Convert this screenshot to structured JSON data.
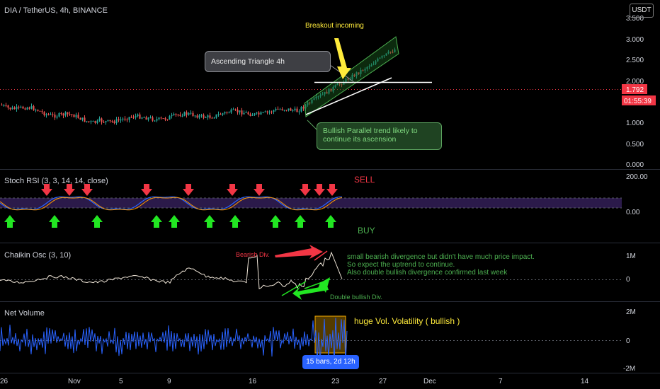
{
  "header": {
    "symbol": "DIA / TetherUS, 4h, BINANCE",
    "currency_badge": "USDT"
  },
  "price_axis": {
    "ticks": [
      "3.500",
      "3.000",
      "2.500",
      "2.000",
      "1.500",
      "1.000",
      "0.500",
      "0.000"
    ],
    "current_price": "1.792",
    "countdown": "01:55:39",
    "price_tag_color": "#f23645"
  },
  "panes": {
    "stoch_rsi": {
      "title": "Stoch RSI (3, 3, 14, 14, close)",
      "ticks": [
        "200.00",
        "0.00"
      ],
      "sell_label": "SELL",
      "buy_label": "BUY"
    },
    "chaikin": {
      "title": "Chaikin Osc (3, 10)",
      "ticks": [
        "1M",
        "0"
      ]
    },
    "net_volume": {
      "title": "Net Volume",
      "ticks": [
        "2M",
        "0",
        "-2M"
      ]
    }
  },
  "time_axis": {
    "ticks": [
      "26",
      "Nov",
      "5",
      "9",
      "16",
      "23",
      "27",
      "Dec",
      "7",
      "14"
    ]
  },
  "annotations": {
    "breakout": "Breakout incoming",
    "ascending_triangle": "Ascending Triangle 4h",
    "bullish_trend": "Bullish Parallel trend likely to continue its ascension",
    "bearish_div": "Bearish Div.",
    "chaikin_note_1": "small bearish divergence but didn't have much price impact.",
    "chaikin_note_2": "So expect the uptrend to continue.",
    "chaikin_note_3": " Also double bullish divergence confirmed last week",
    "double_bullish_div": "Double bullish Div.",
    "volume_note": "huge Vol. Volatility ( bullish )",
    "range_measure": "15 bars, 2d 12h"
  },
  "colors": {
    "up": "#26a69a",
    "down": "#ef5350",
    "sell_arrow": "#f23645",
    "buy_arrow": "#22e622",
    "annotation_yellow": "#ffeb3b",
    "annotation_green": "#4caf50",
    "channel_fill": "#1b5e20",
    "net_volume_line": "#2962ff"
  },
  "icons": {
    "sell_arrows": "arrow-down-icon",
    "buy_arrows": "arrow-up-icon"
  }
}
